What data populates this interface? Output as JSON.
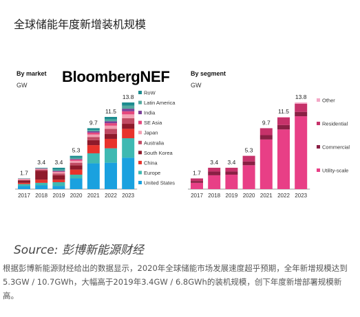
{
  "heading": "全球储能年度新增装机规模",
  "brand": "BloombergNEF",
  "source": "Source: 彭博新能源财经",
  "paragraph": "根据彭博新能源财经给出的数据显示，2020年全球储能市场发展速度超乎预期，全年新增规模达到5.3GW / 10.7GWh，大幅高于2019年3.4GW / 6.8GWh的装机规模，创下年度新增部署规模新高。",
  "chart_data": [
    {
      "type": "bar",
      "subtitle": "By market",
      "ylabel": "GW",
      "categories": [
        "2017",
        "2018",
        "2019",
        "2020",
        "2021",
        "2022",
        "2023"
      ],
      "totals": [
        1.7,
        3.4,
        3.4,
        5.3,
        9.7,
        11.5,
        13.8
      ],
      "ylim": [
        0,
        13.8
      ],
      "series": [
        {
          "name": "United States",
          "color": "#1aa1df",
          "values": [
            0.5,
            0.6,
            0.5,
            1.7,
            4.1,
            4.2,
            5.0
          ]
        },
        {
          "name": "Europe",
          "color": "#3fb9b2",
          "values": [
            0.3,
            0.4,
            0.6,
            0.6,
            1.6,
            2.3,
            3.1
          ]
        },
        {
          "name": "China",
          "color": "#e8332c",
          "values": [
            0.2,
            0.5,
            0.4,
            0.8,
            1.3,
            1.5,
            1.5
          ]
        },
        {
          "name": "South Korea",
          "color": "#8e1a2b",
          "values": [
            0.4,
            1.4,
            0.7,
            0.7,
            0.8,
            0.8,
            0.8
          ]
        },
        {
          "name": "Australia",
          "color": "#c14a63",
          "values": [
            0.05,
            0.2,
            0.3,
            0.4,
            0.5,
            0.8,
            0.9
          ]
        },
        {
          "name": "Japan",
          "color": "#f2a1b3",
          "values": [
            0.15,
            0.1,
            0.2,
            0.3,
            0.4,
            0.5,
            0.6
          ]
        },
        {
          "name": "SE Asia",
          "color": "#e5477d",
          "values": [
            0.05,
            0.05,
            0.1,
            0.2,
            0.3,
            0.4,
            0.5
          ]
        },
        {
          "name": "India",
          "color": "#7a3f98",
          "values": [
            0.0,
            0.05,
            0.1,
            0.1,
            0.2,
            0.3,
            0.4
          ]
        },
        {
          "name": "Latin America",
          "color": "#55a9a0",
          "values": [
            0.0,
            0.05,
            0.2,
            0.2,
            0.2,
            0.3,
            0.5
          ]
        },
        {
          "name": "RoW",
          "color": "#1c8c8f",
          "values": [
            0.05,
            0.05,
            0.3,
            0.3,
            0.3,
            0.4,
            0.5
          ]
        }
      ]
    },
    {
      "type": "bar",
      "subtitle": "By segment",
      "ylabel": "GW",
      "categories": [
        "2017",
        "2018",
        "2019",
        "2020",
        "2021",
        "2022",
        "2023"
      ],
      "totals": [
        1.7,
        3.4,
        3.4,
        5.3,
        9.7,
        11.5,
        13.8
      ],
      "ylim": [
        0,
        13.8
      ],
      "series": [
        {
          "name": "Utility-scale",
          "color": "#e83f86",
          "values": [
            1.0,
            2.2,
            2.3,
            3.8,
            7.9,
            9.5,
            11.6
          ]
        },
        {
          "name": "Commercial",
          "color": "#8a1f44",
          "values": [
            0.3,
            0.6,
            0.5,
            0.6,
            0.7,
            0.7,
            0.7
          ]
        },
        {
          "name": "Residential",
          "color": "#c6326a",
          "values": [
            0.4,
            0.6,
            0.6,
            0.9,
            1.1,
            1.2,
            1.3
          ]
        },
        {
          "name": "Other",
          "color": "#f4a9c7",
          "values": [
            0.0,
            0.0,
            0.0,
            0.0,
            0.0,
            0.1,
            0.2
          ]
        }
      ]
    }
  ]
}
